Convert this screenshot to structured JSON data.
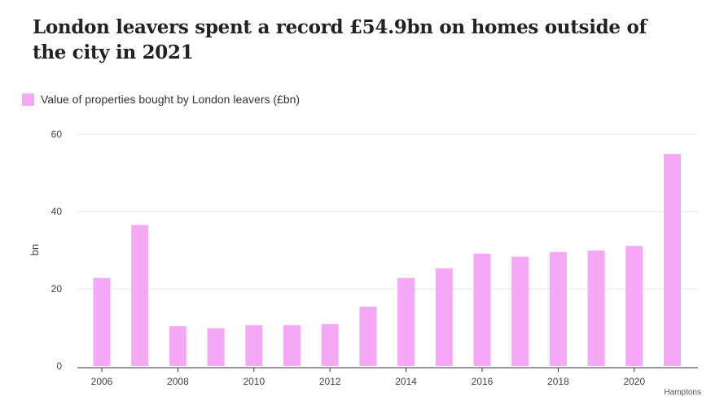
{
  "chart_data": {
    "type": "bar",
    "title": "London leavers spent a record £54.9bn on homes outside of the city in 2021",
    "legend": [
      "Value of properties bought by London leavers (£bn)"
    ],
    "legend_placement": "top-left",
    "categories": [
      "2006",
      "2007",
      "2008",
      "2009",
      "2010",
      "2011",
      "2012",
      "2013",
      "2014",
      "2015",
      "2016",
      "2017",
      "2018",
      "2019",
      "2020",
      "2021"
    ],
    "series": [
      {
        "name": "Value of properties bought by London leavers (£bn)",
        "values": [
          22.8,
          36.5,
          10.3,
          9.8,
          10.6,
          10.6,
          10.9,
          15.4,
          22.8,
          25.3,
          29.1,
          28.3,
          29.5,
          29.9,
          31.1,
          54.9
        ],
        "color": "#f5a8f5"
      }
    ],
    "xticks": [
      "2006",
      "2008",
      "2010",
      "2012",
      "2014",
      "2016",
      "2018",
      "2020"
    ],
    "yticks": [
      "0",
      "20",
      "40",
      "60"
    ],
    "xlabel": "",
    "ylabel": "bn",
    "ylim": [
      0,
      60
    ],
    "grid": true,
    "source": "Hamptons"
  }
}
